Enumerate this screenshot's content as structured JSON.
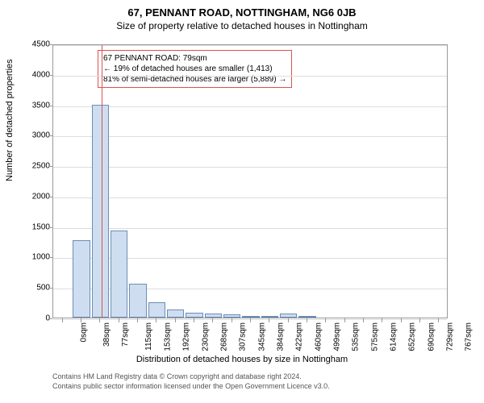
{
  "title_main": "67, PENNANT ROAD, NOTTINGHAM, NG6 0JB",
  "title_sub": "Size of property relative to detached houses in Nottingham",
  "chart": {
    "type": "histogram",
    "y_label": "Number of detached properties",
    "x_label": "Distribution of detached houses by size in Nottingham",
    "ylim": [
      0,
      4500
    ],
    "ytick_step": 500,
    "yticks": [
      0,
      500,
      1000,
      1500,
      2000,
      2500,
      3000,
      3500,
      4000,
      4500
    ],
    "xticks": [
      "0sqm",
      "38sqm",
      "77sqm",
      "115sqm",
      "153sqm",
      "192sqm",
      "230sqm",
      "268sqm",
      "307sqm",
      "345sqm",
      "384sqm",
      "422sqm",
      "460sqm",
      "499sqm",
      "535sqm",
      "575sqm",
      "614sqm",
      "652sqm",
      "690sqm",
      "729sqm",
      "767sqm"
    ],
    "bar_color": "#cedef0",
    "bar_border": "#6b8db8",
    "grid_color": "#dddddd",
    "axis_color": "#999999",
    "bars": [
      {
        "label": "0sqm",
        "value": 0
      },
      {
        "label": "38sqm",
        "value": 1270
      },
      {
        "label": "77sqm",
        "value": 3490
      },
      {
        "label": "115sqm",
        "value": 1430
      },
      {
        "label": "153sqm",
        "value": 560
      },
      {
        "label": "192sqm",
        "value": 250
      },
      {
        "label": "230sqm",
        "value": 130
      },
      {
        "label": "268sqm",
        "value": 80
      },
      {
        "label": "307sqm",
        "value": 60
      },
      {
        "label": "345sqm",
        "value": 50
      },
      {
        "label": "384sqm",
        "value": 30
      },
      {
        "label": "422sqm",
        "value": 20
      },
      {
        "label": "460sqm",
        "value": 60
      },
      {
        "label": "499sqm",
        "value": 10
      },
      {
        "label": "535sqm",
        "value": 0
      },
      {
        "label": "575sqm",
        "value": 0
      },
      {
        "label": "614sqm",
        "value": 0
      },
      {
        "label": "652sqm",
        "value": 0
      },
      {
        "label": "690sqm",
        "value": 0
      },
      {
        "label": "729sqm",
        "value": 0
      },
      {
        "label": "767sqm",
        "value": 0
      }
    ],
    "marker_line_color": "#d9534f",
    "marker_value_sqm": 79
  },
  "info_box": {
    "border_color": "#d9534f",
    "line1": "67 PENNANT ROAD: 79sqm",
    "line2": "← 19% of detached houses are smaller (1,413)",
    "line3": "81% of semi-detached houses are larger (5,889) →"
  },
  "attribution": {
    "line1": "Contains HM Land Registry data © Crown copyright and database right 2024.",
    "line2": "Contains public sector information licensed under the Open Government Licence v3.0."
  }
}
